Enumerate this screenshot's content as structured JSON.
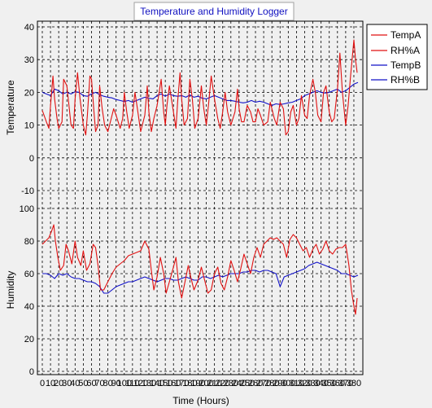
{
  "title": "Temperature and Humidity Logger",
  "legend_placement": "top-right",
  "colors": {
    "series_a": "#e01010",
    "series_b": "#1010c8",
    "title": "#1010c0",
    "plot_bg": "#f0f0f0",
    "grid": "#000000"
  },
  "chart_data": [
    {
      "type": "line",
      "title": "Temperature and Humidity Logger",
      "ylabel": "Temperature",
      "xlabel": "",
      "xlim": [
        0,
        385
      ],
      "ylim": [
        -10,
        40
      ],
      "xticks": [
        0,
        10,
        20,
        30,
        40,
        50,
        60,
        70,
        80,
        90,
        100,
        110,
        120,
        130,
        140,
        150,
        160,
        170,
        180,
        190,
        200,
        210,
        220,
        230,
        240,
        250,
        260,
        270,
        280,
        290,
        300,
        310,
        320,
        330,
        340,
        350,
        360,
        370,
        380
      ],
      "yticks": [
        -10,
        0,
        10,
        20,
        30,
        40
      ],
      "grid": true,
      "series": [
        {
          "name": "TempA",
          "color": "#e01010",
          "x": [
            0,
            5,
            8,
            10,
            13,
            15,
            18,
            20,
            24,
            26,
            30,
            35,
            38,
            40,
            43,
            46,
            50,
            53,
            55,
            58,
            60,
            63,
            65,
            68,
            70,
            73,
            76,
            80,
            84,
            87,
            90,
            95,
            98,
            100,
            103,
            106,
            110,
            113,
            116,
            120,
            125,
            128,
            130,
            133,
            136,
            140,
            145,
            148,
            150,
            152,
            155,
            160,
            163,
            165,
            168,
            170,
            173,
            177,
            180,
            183,
            186,
            190,
            194,
            197,
            200,
            203,
            206,
            210,
            214,
            217,
            220,
            223,
            226,
            230,
            235,
            238,
            240,
            243,
            246,
            250,
            254,
            257,
            260,
            263,
            266,
            270,
            275,
            278,
            280,
            283,
            286,
            290,
            294,
            297,
            300,
            303,
            306,
            310,
            313,
            316,
            320,
            323,
            326,
            330,
            333,
            336,
            340,
            343,
            346,
            350,
            353,
            356,
            360,
            363,
            366,
            370,
            373,
            376,
            380,
            382,
            384
          ],
          "values": [
            14.5,
            11,
            9,
            16,
            25,
            18,
            12,
            9,
            11,
            24,
            22,
            10,
            9,
            18,
            26,
            18,
            10,
            7,
            13,
            25,
            24,
            14,
            8,
            10,
            22,
            15,
            10,
            8,
            12,
            15,
            13,
            9,
            12,
            20,
            14,
            9,
            13,
            20,
            15,
            8,
            13,
            22,
            14,
            8,
            12,
            16,
            24,
            14,
            10,
            16,
            22,
            14,
            9,
            17,
            26,
            18,
            10,
            12,
            24,
            18,
            9,
            12,
            22,
            15,
            10,
            17,
            25,
            18,
            12,
            9,
            14,
            20,
            14,
            10,
            14,
            21,
            15,
            11,
            11,
            16,
            14,
            11,
            11,
            15,
            13,
            10,
            11,
            17,
            15,
            12,
            10,
            17,
            15,
            7,
            8,
            14,
            16,
            10,
            12,
            19,
            13,
            12,
            19,
            24,
            20,
            13,
            11,
            20,
            22,
            14,
            11,
            12,
            21,
            32,
            20,
            10,
            16,
            25,
            36,
            30,
            26
          ]
        },
        {
          "name": "TempB",
          "color": "#1010c8",
          "x": [
            0,
            10,
            15,
            20,
            25,
            30,
            35,
            40,
            45,
            50,
            55,
            60,
            65,
            70,
            75,
            80,
            85,
            90,
            95,
            100,
            105,
            110,
            115,
            120,
            125,
            130,
            135,
            140,
            145,
            150,
            155,
            160,
            165,
            170,
            175,
            180,
            185,
            190,
            195,
            200,
            205,
            210,
            215,
            220,
            225,
            230,
            235,
            240,
            245,
            250,
            255,
            260,
            265,
            270,
            275,
            280,
            285,
            290,
            295,
            300,
            305,
            310,
            315,
            320,
            325,
            330,
            335,
            340,
            345,
            350,
            355,
            360,
            365,
            370,
            375,
            380,
            385
          ],
          "values": [
            20,
            19,
            21,
            20.5,
            19.5,
            20,
            19.5,
            20.2,
            20,
            19,
            18.8,
            19.5,
            20,
            19.3,
            18.8,
            18.5,
            18.3,
            17.8,
            17.5,
            17.2,
            17.5,
            17,
            17.5,
            18,
            18.5,
            18.2,
            18,
            19,
            19.5,
            18.8,
            19.5,
            19,
            18.8,
            19,
            18.5,
            19.2,
            18.5,
            18.8,
            18.2,
            18,
            18.5,
            19,
            18.5,
            18,
            17.5,
            17.5,
            17.3,
            17,
            16.8,
            17,
            17.5,
            17,
            17.3,
            17,
            16.5,
            16,
            16.5,
            16.3,
            16.5,
            16.8,
            17,
            17.5,
            18,
            19,
            19.5,
            20,
            20.5,
            20,
            19.8,
            20,
            20.5,
            21,
            20,
            20.5,
            21.5,
            22.5,
            23
          ]
        }
      ]
    },
    {
      "type": "line",
      "ylabel": "Humidity",
      "xlabel": "Time (Hours)",
      "xlim": [
        0,
        385
      ],
      "ylim": [
        0,
        100
      ],
      "xticks": [
        0,
        10,
        20,
        30,
        40,
        50,
        60,
        70,
        80,
        90,
        100,
        110,
        120,
        130,
        140,
        150,
        160,
        170,
        180,
        190,
        200,
        210,
        220,
        230,
        240,
        250,
        260,
        270,
        280,
        290,
        300,
        310,
        320,
        330,
        340,
        350,
        360,
        370,
        380
      ],
      "yticks": [
        0,
        20,
        40,
        60,
        80,
        100
      ],
      "grid": true,
      "series": [
        {
          "name": "RH%A",
          "color": "#e01010",
          "x": [
            0,
            4,
            8,
            12,
            14,
            16,
            19,
            22,
            26,
            29,
            32,
            36,
            40,
            43,
            47,
            50,
            54,
            58,
            62,
            65,
            68,
            71,
            75,
            80,
            85,
            90,
            95,
            100,
            105,
            110,
            115,
            120,
            125,
            130,
            133,
            136,
            140,
            144,
            148,
            151,
            155,
            160,
            163,
            166,
            170,
            174,
            178,
            181,
            185,
            190,
            194,
            198,
            202,
            206,
            210,
            214,
            218,
            222,
            226,
            230,
            234,
            238,
            242,
            246,
            250,
            254,
            258,
            262,
            266,
            270,
            274,
            278,
            282,
            286,
            290,
            294,
            298,
            302,
            306,
            310,
            314,
            318,
            322,
            326,
            330,
            334,
            338,
            342,
            346,
            350,
            354,
            358,
            362,
            366,
            370,
            374,
            377,
            380,
            382,
            384
          ],
          "values": [
            78,
            80,
            82,
            87,
            90,
            80,
            70,
            62,
            65,
            78,
            74,
            66,
            80,
            70,
            65,
            74,
            62,
            66,
            78,
            76,
            65,
            50,
            50,
            55,
            60,
            64,
            66,
            68,
            71,
            72,
            73,
            74,
            80,
            75,
            62,
            50,
            58,
            70,
            60,
            48,
            55,
            64,
            70,
            55,
            45,
            55,
            65,
            58,
            50,
            56,
            64,
            56,
            48,
            50,
            60,
            64,
            54,
            50,
            58,
            68,
            62,
            55,
            63,
            72,
            66,
            60,
            70,
            76,
            70,
            78,
            80,
            82,
            81,
            82,
            80,
            78,
            70,
            81,
            84,
            82,
            78,
            74,
            76,
            70,
            75,
            78,
            72,
            75,
            80,
            74,
            72,
            75,
            76,
            76,
            78,
            65,
            50,
            40,
            35,
            45
          ]
        },
        {
          "name": "RH%B",
          "color": "#1010c8",
          "x": [
            0,
            5,
            10,
            15,
            20,
            25,
            30,
            35,
            40,
            45,
            50,
            55,
            60,
            65,
            70,
            75,
            80,
            85,
            90,
            95,
            100,
            105,
            110,
            115,
            120,
            125,
            130,
            135,
            140,
            145,
            150,
            155,
            160,
            165,
            170,
            175,
            180,
            185,
            190,
            195,
            200,
            205,
            210,
            215,
            220,
            225,
            230,
            235,
            240,
            245,
            250,
            255,
            260,
            265,
            270,
            275,
            280,
            285,
            290,
            295,
            300,
            305,
            310,
            315,
            320,
            325,
            330,
            335,
            340,
            345,
            350,
            355,
            360,
            365,
            370,
            375,
            380,
            385
          ],
          "values": [
            60,
            60,
            59,
            57,
            60,
            59,
            60,
            58,
            57,
            57,
            56,
            55,
            55,
            54,
            52,
            48,
            48,
            50,
            52,
            53,
            54,
            55,
            55,
            56,
            57,
            58,
            57,
            56,
            55,
            56,
            57,
            57,
            56,
            56,
            57,
            58,
            57,
            56,
            56,
            58,
            58,
            57,
            58,
            59,
            58,
            59,
            60,
            60,
            60,
            61,
            61,
            62,
            62,
            61,
            62,
            62,
            61,
            60,
            52,
            58,
            59,
            60,
            61,
            62,
            63,
            65,
            66,
            67,
            66,
            65,
            64,
            63,
            62,
            60,
            60,
            59,
            58,
            59
          ]
        }
      ]
    }
  ]
}
